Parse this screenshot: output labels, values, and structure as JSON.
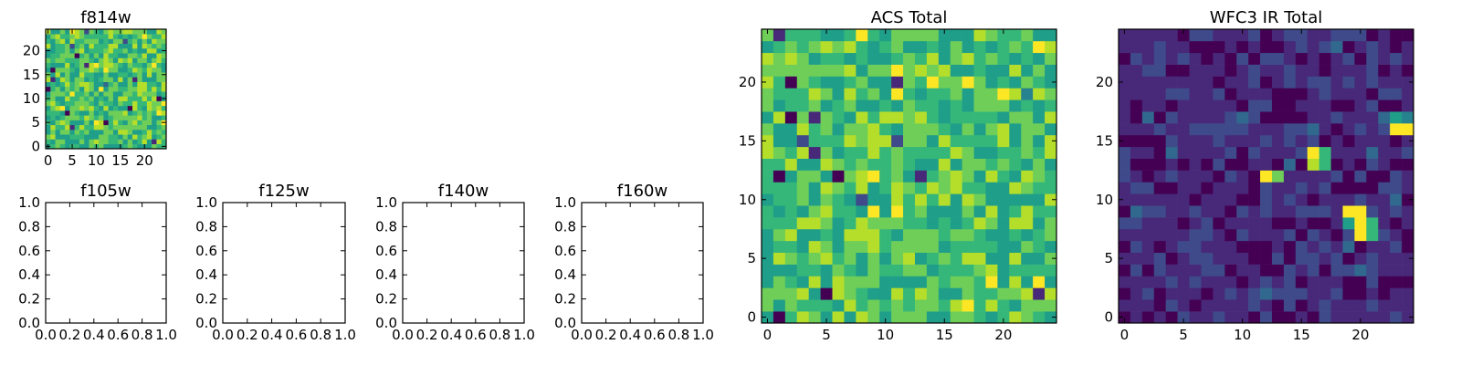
{
  "figure": {
    "background": "#ffffff"
  },
  "colormap": [
    "#440154",
    "#482878",
    "#3e4a89",
    "#31688e",
    "#26828e",
    "#1f9e89",
    "#35b779",
    "#6ece58",
    "#b5de2b",
    "#fde725"
  ],
  "chart_data": [
    {
      "id": "f814w",
      "type": "heatmap",
      "title": "f814w",
      "shape": [
        25,
        25
      ],
      "seed": 17,
      "distribution": "acs",
      "xlim": [
        -0.5,
        24.5
      ],
      "ylim": [
        -0.5,
        24.5
      ],
      "xticks": [
        0,
        5,
        10,
        15,
        20
      ],
      "yticks": [
        0,
        5,
        10,
        15,
        20
      ],
      "xtick_labels": [
        "0",
        "5",
        "10",
        "15",
        "20"
      ],
      "ytick_labels": [
        "0",
        "5",
        "10",
        "15",
        "20"
      ]
    },
    {
      "id": "f105w",
      "type": "empty",
      "title": "f105w",
      "xlim": [
        0,
        1
      ],
      "ylim": [
        0,
        1
      ],
      "xticks": [
        0,
        0.2,
        0.4,
        0.6,
        0.8,
        1.0
      ],
      "yticks": [
        0,
        0.2,
        0.4,
        0.6,
        0.8,
        1.0
      ],
      "xtick_labels": [
        "0.0",
        "0.2",
        "0.4",
        "0.6",
        "0.8",
        "1.0"
      ],
      "ytick_labels": [
        "0.0",
        "0.2",
        "0.4",
        "0.6",
        "0.8",
        "1.0"
      ]
    },
    {
      "id": "f125w",
      "type": "empty",
      "title": "f125w",
      "xlim": [
        0,
        1
      ],
      "ylim": [
        0,
        1
      ],
      "xticks": [
        0,
        0.2,
        0.4,
        0.6,
        0.8,
        1.0
      ],
      "yticks": [
        0,
        0.2,
        0.4,
        0.6,
        0.8,
        1.0
      ],
      "xtick_labels": [
        "0.0",
        "0.2",
        "0.4",
        "0.6",
        "0.8",
        "1.0"
      ],
      "ytick_labels": [
        "0.0",
        "0.2",
        "0.4",
        "0.6",
        "0.8",
        "1.0"
      ]
    },
    {
      "id": "f140w",
      "type": "empty",
      "title": "f140w",
      "xlim": [
        0,
        1
      ],
      "ylim": [
        0,
        1
      ],
      "xticks": [
        0,
        0.2,
        0.4,
        0.6,
        0.8,
        1.0
      ],
      "yticks": [
        0,
        0.2,
        0.4,
        0.6,
        0.8,
        1.0
      ],
      "xtick_labels": [
        "0.0",
        "0.2",
        "0.4",
        "0.6",
        "0.8",
        "1.0"
      ],
      "ytick_labels": [
        "0.0",
        "0.2",
        "0.4",
        "0.6",
        "0.8",
        "1.0"
      ]
    },
    {
      "id": "f160w",
      "type": "empty",
      "title": "f160w",
      "xlim": [
        0,
        1
      ],
      "ylim": [
        0,
        1
      ],
      "xticks": [
        0,
        0.2,
        0.4,
        0.6,
        0.8,
        1.0
      ],
      "yticks": [
        0,
        0.2,
        0.4,
        0.6,
        0.8,
        1.0
      ],
      "xtick_labels": [
        "0.0",
        "0.2",
        "0.4",
        "0.6",
        "0.8",
        "1.0"
      ],
      "ytick_labels": [
        "0.0",
        "0.2",
        "0.4",
        "0.6",
        "0.8",
        "1.0"
      ]
    },
    {
      "id": "acs-total",
      "type": "heatmap",
      "title": "ACS Total",
      "shape": [
        25,
        25
      ],
      "seed": 42,
      "distribution": "acs",
      "xlim": [
        -0.5,
        24.5
      ],
      "ylim": [
        -0.5,
        24.5
      ],
      "xticks": [
        0,
        5,
        10,
        15,
        20
      ],
      "yticks": [
        0,
        5,
        10,
        15,
        20
      ],
      "xtick_labels": [
        "0",
        "5",
        "10",
        "15",
        "20"
      ],
      "ytick_labels": [
        "0",
        "5",
        "10",
        "15",
        "20"
      ]
    },
    {
      "id": "wfc3-ir-total",
      "type": "heatmap",
      "title": "WFC3 IR Total",
      "shape": [
        25,
        25
      ],
      "seed": 7,
      "distribution": "ir",
      "xlim": [
        -0.5,
        24.5
      ],
      "ylim": [
        -0.5,
        24.5
      ],
      "xticks": [
        0,
        5,
        10,
        15,
        20
      ],
      "yticks": [
        0,
        5,
        10,
        15,
        20
      ],
      "xtick_labels": [
        "0",
        "5",
        "10",
        "15",
        "20"
      ],
      "ytick_labels": [
        "0",
        "5",
        "10",
        "15",
        "20"
      ],
      "hot_pixels": [
        {
          "x": 12,
          "y": 12,
          "v": 0.97
        },
        {
          "x": 13,
          "y": 12,
          "v": 0.78
        },
        {
          "x": 16,
          "y": 14,
          "v": 0.95
        },
        {
          "x": 17,
          "y": 14,
          "v": 0.62
        },
        {
          "x": 16,
          "y": 13,
          "v": 0.82
        },
        {
          "x": 17,
          "y": 13,
          "v": 0.6
        },
        {
          "x": 19,
          "y": 9,
          "v": 0.92
        },
        {
          "x": 20,
          "y": 9,
          "v": 0.98
        },
        {
          "x": 20,
          "y": 8,
          "v": 0.99
        },
        {
          "x": 20,
          "y": 7,
          "v": 0.97
        },
        {
          "x": 21,
          "y": 8,
          "v": 0.65
        },
        {
          "x": 21,
          "y": 7,
          "v": 0.6
        },
        {
          "x": 19,
          "y": 8,
          "v": 0.55
        },
        {
          "x": 23,
          "y": 16,
          "v": 0.95
        },
        {
          "x": 24,
          "y": 16,
          "v": 0.97
        },
        {
          "x": 23,
          "y": 17,
          "v": 0.5
        },
        {
          "x": 24,
          "y": 17,
          "v": 0.45
        }
      ]
    }
  ]
}
